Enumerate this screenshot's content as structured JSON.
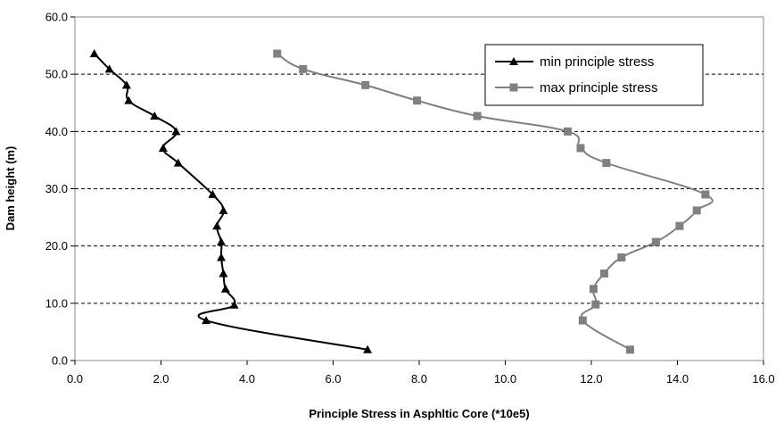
{
  "chart_data": {
    "type": "line",
    "title": "",
    "xlabel": "Principle Stress in Asphltic Core (*10e5)",
    "ylabel": "Dam height (m)",
    "xlim": [
      0.0,
      16.0
    ],
    "ylim": [
      0.0,
      60.0
    ],
    "x_ticks": [
      "0.0",
      "2.0",
      "4.0",
      "6.0",
      "8.0",
      "10.0",
      "12.0",
      "14.0",
      "16.0"
    ],
    "y_ticks": [
      "0.0",
      "10.0",
      "20.0",
      "30.0",
      "40.0",
      "50.0",
      "60.0"
    ],
    "grid": "horizontal dashed",
    "legend_position": "top-right",
    "series": [
      {
        "name": "min principle stress",
        "color": "#000000",
        "marker": "triangle",
        "points": [
          [
            6.8,
            1.9
          ],
          [
            3.05,
            7.0
          ],
          [
            3.7,
            9.7
          ],
          [
            3.5,
            12.5
          ],
          [
            3.45,
            15.2
          ],
          [
            3.4,
            18.0
          ],
          [
            3.4,
            20.7
          ],
          [
            3.3,
            23.5
          ],
          [
            3.45,
            26.2
          ],
          [
            3.2,
            29.0
          ],
          [
            2.4,
            34.5
          ],
          [
            2.05,
            37.1
          ],
          [
            2.35,
            40.0
          ],
          [
            1.85,
            42.7
          ],
          [
            1.25,
            45.4
          ],
          [
            1.2,
            48.1
          ],
          [
            0.8,
            50.9
          ],
          [
            0.45,
            53.6
          ]
        ]
      },
      {
        "name": "max principle stress",
        "color": "#808080",
        "marker": "square",
        "points": [
          [
            12.9,
            1.9
          ],
          [
            11.8,
            7.0
          ],
          [
            12.1,
            9.8
          ],
          [
            12.05,
            12.5
          ],
          [
            12.3,
            15.2
          ],
          [
            12.7,
            18.0
          ],
          [
            13.5,
            20.7
          ],
          [
            14.05,
            23.5
          ],
          [
            14.45,
            26.2
          ],
          [
            14.65,
            29.0
          ],
          [
            12.35,
            34.5
          ],
          [
            11.75,
            37.1
          ],
          [
            11.45,
            40.0
          ],
          [
            9.35,
            42.7
          ],
          [
            7.95,
            45.4
          ],
          [
            6.75,
            48.1
          ],
          [
            5.3,
            50.9
          ],
          [
            4.7,
            53.6
          ]
        ]
      }
    ]
  }
}
